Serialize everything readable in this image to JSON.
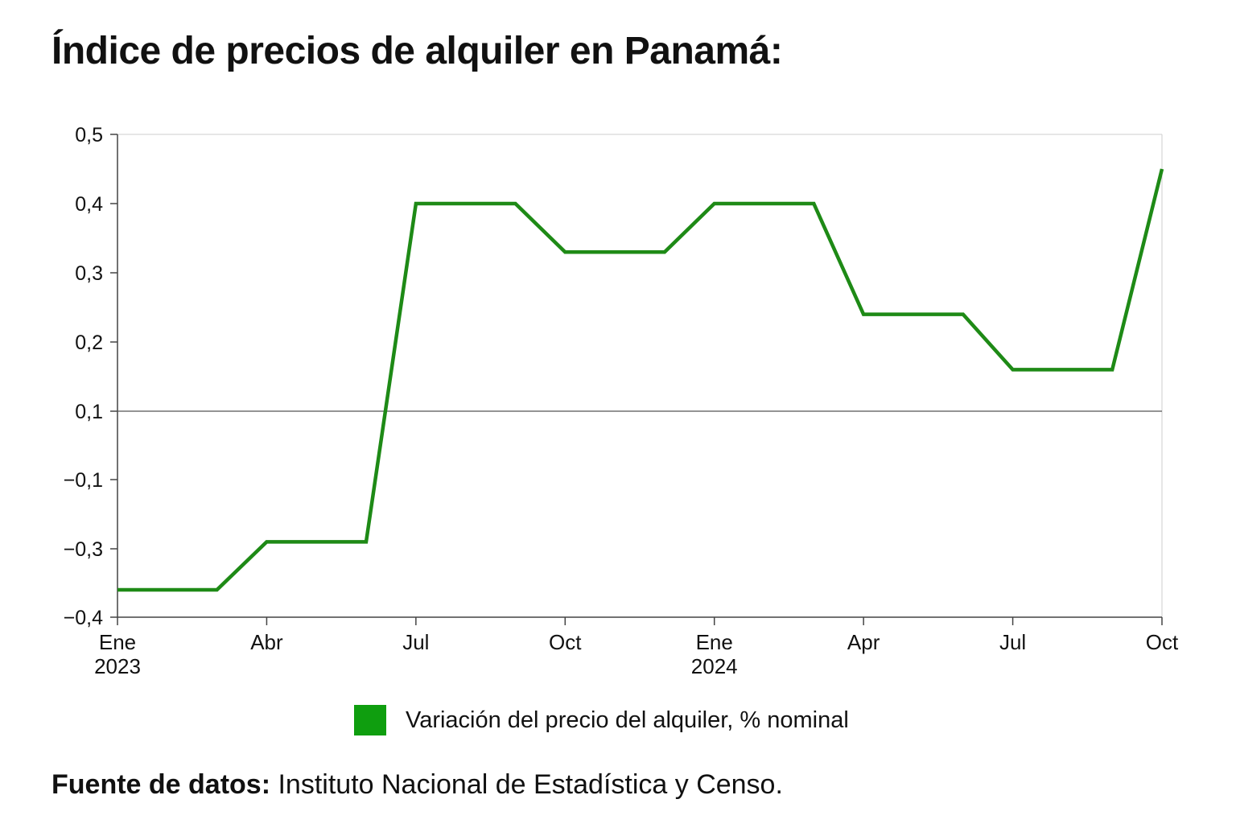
{
  "title": "Índice de precios de alquiler en Panamá:",
  "source": {
    "label": "Fuente de datos:",
    "text": " Instituto Nacional de Estadística y Censo."
  },
  "colors": {
    "series": "#1e8a16",
    "legend_swatch": "#0f9e0f",
    "reference_line": "#555555",
    "axis": "#444444",
    "frame": "#cccccc"
  },
  "chart_data": {
    "type": "line",
    "title": "Índice de precios de alquiler en Panamá:",
    "xlabel": "",
    "ylabel": "",
    "x_tick_labels": [
      {
        "month": "2023-01",
        "label": "Ene",
        "sublabel": "2023"
      },
      {
        "month": "2023-04",
        "label": "Abr",
        "sublabel": ""
      },
      {
        "month": "2023-07",
        "label": "Jul",
        "sublabel": ""
      },
      {
        "month": "2023-10",
        "label": "Oct",
        "sublabel": ""
      },
      {
        "month": "2024-01",
        "label": "Ene",
        "sublabel": "2024"
      },
      {
        "month": "2024-04",
        "label": "Apr",
        "sublabel": ""
      },
      {
        "month": "2024-07",
        "label": "Jul",
        "sublabel": ""
      },
      {
        "month": "2024-10",
        "label": "Oct",
        "sublabel": ""
      }
    ],
    "y_tick_labels": [
      "0,5",
      "0,4",
      "0,3",
      "0,2",
      "0,1",
      "−0,1",
      "−0,3",
      "−0,4"
    ],
    "reference_line_at": "0,1",
    "series": [
      {
        "name": "Variación del precio del alquiler, % nominal",
        "x": [
          "2023-01",
          "2023-03",
          "2023-04",
          "2023-06",
          "2023-07",
          "2023-09",
          "2023-10",
          "2023-12",
          "2024-01",
          "2024-03",
          "2024-04",
          "2024-06",
          "2024-07",
          "2024-09",
          "2024-10"
        ],
        "y": [
          "−0,36",
          "−0,36",
          "−0,28",
          "−0,28",
          "0,4",
          "0,4",
          "0,33",
          "0,33",
          "0,4",
          "0,4",
          "0,24",
          "0,24",
          "0,16",
          "0,16",
          "0,45"
        ]
      }
    ],
    "legend": "bottom-center",
    "grid": false
  }
}
